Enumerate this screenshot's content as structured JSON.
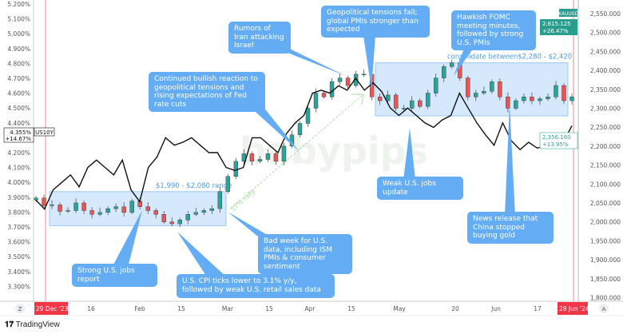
{
  "chart_data": {
    "type": "candlestick+line",
    "title": "",
    "series": [
      {
        "name": "XAUUSD",
        "axis": "right",
        "style": "candlestick",
        "color_up": "#26a69a",
        "color_down": "#ef5350",
        "close": [
          2063,
          2043,
          2045,
          2028,
          2030,
          2050,
          2030,
          2020,
          2025,
          2035,
          2040,
          2025,
          2055,
          2040,
          2030,
          2020,
          2000,
          1995,
          2005,
          2020,
          2025,
          2030,
          2035,
          2080,
          2120,
          2160,
          2180,
          2160,
          2165,
          2180,
          2160,
          2200,
          2230,
          2260,
          2300,
          2340,
          2330,
          2370,
          2380,
          2360,
          2390,
          2390,
          2330,
          2320,
          2335,
          2300,
          2300,
          2320,
          2305,
          2340,
          2380,
          2410,
          2420,
          2380,
          2330,
          2340,
          2345,
          2370,
          2330,
          2300,
          2320,
          2330,
          2320,
          2325,
          2330,
          2360,
          2320,
          2330
        ]
      },
      {
        "name": "US10Y",
        "axis": "left",
        "style": "line",
        "color": "#111111",
        "values": [
          3.88,
          3.82,
          3.95,
          4.0,
          4.05,
          3.97,
          4.1,
          4.15,
          4.1,
          4.05,
          4.15,
          3.95,
          3.87,
          4.1,
          4.17,
          4.3,
          4.25,
          4.27,
          4.3,
          4.25,
          4.2,
          4.2,
          4.1,
          4.08,
          4.1,
          4.3,
          4.3,
          4.25,
          4.2,
          4.33,
          4.4,
          4.45,
          4.6,
          4.62,
          4.6,
          4.65,
          4.62,
          4.7,
          4.62,
          4.67,
          4.61,
          4.5,
          4.45,
          4.5,
          4.45,
          4.4,
          4.37,
          4.42,
          4.45,
          4.6,
          4.5,
          4.4,
          4.32,
          4.25,
          4.4,
          4.28,
          4.22,
          4.27,
          4.23,
          4.25,
          4.3,
          4.27,
          4.38
        ]
      }
    ],
    "left_axis": {
      "ticks": [
        "5.200%",
        "5.100%",
        "5.000%",
        "4.900%",
        "4.800%",
        "4.700%",
        "4.600%",
        "4.500%",
        "4.400%",
        "4.200%",
        "4.100%",
        "4.000%",
        "3.900%",
        "3.800%",
        "3.700%",
        "3.600%",
        "3.500%",
        "3.400%",
        "3.300%"
      ],
      "range": [
        3.25,
        5.22
      ]
    },
    "right_axis": {
      "ticks": [
        "2,550.000",
        "2,500.000",
        "2,450.000",
        "2,400.000",
        "2,350.000",
        "2,300.000",
        "2,250.000",
        "2,200.000",
        "2,150.000",
        "2,100.000",
        "2,050.000",
        "2,000.000",
        "1,950.000",
        "1,900.000",
        "1,850.000",
        "1,800.000"
      ],
      "range": [
        1790,
        2580
      ]
    },
    "x_axis": {
      "ticks": [
        "16",
        "Feb",
        "15",
        "Mar",
        "15",
        "Apr",
        "15",
        "May",
        "20",
        "Jun",
        "17"
      ],
      "start_label": "29 Dec '23",
      "end_label": "28 Jun '24"
    },
    "legend": {
      "xau_tag": "XAUUSD",
      "xau_last": "2,615.125",
      "xau_change": "+26.47%",
      "xau_price": "2,356.160",
      "xau_price_change": "+13.95%",
      "us10y_tag": "US10Y",
      "us10y_last": "4.355%",
      "us10y_change": "+14.67%"
    },
    "ranges": [
      {
        "label": "$1,990 - $2,080 range",
        "low": 1990,
        "high": 2080
      },
      {
        "label": "consolidate between$2,280 - $2,420",
        "low": 2280,
        "high": 2420
      }
    ],
    "rally_label": "17% rally",
    "annotations": [
      {
        "text": "Continued bullish reaction to geopolitical tensions and rising expectations of Fed rate cuts"
      },
      {
        "text": "Rumors of Iran attacking Israel"
      },
      {
        "text": "Geopolitical tensions fall; global PMIs stronger than expected"
      },
      {
        "text": "Hawkish FOMC meeting minutes, followed by strong U.S. PMIs"
      },
      {
        "text": "Weak U.S. jobs update"
      },
      {
        "text": "News release that China stopped buying gold"
      },
      {
        "text": "Bad week for U.S. data, including ISM PMIs & consumer sentiment"
      },
      {
        "text": "Strong U.S. jobs report"
      },
      {
        "text": "U.S. CPI  ticks lower to 3.1% y/y, followed by weak U.S. retail sales data"
      }
    ]
  },
  "footer": {
    "brand": "TradingView",
    "zoom_left": "Z",
    "zoom_right": "A"
  },
  "watermark": "babypips"
}
